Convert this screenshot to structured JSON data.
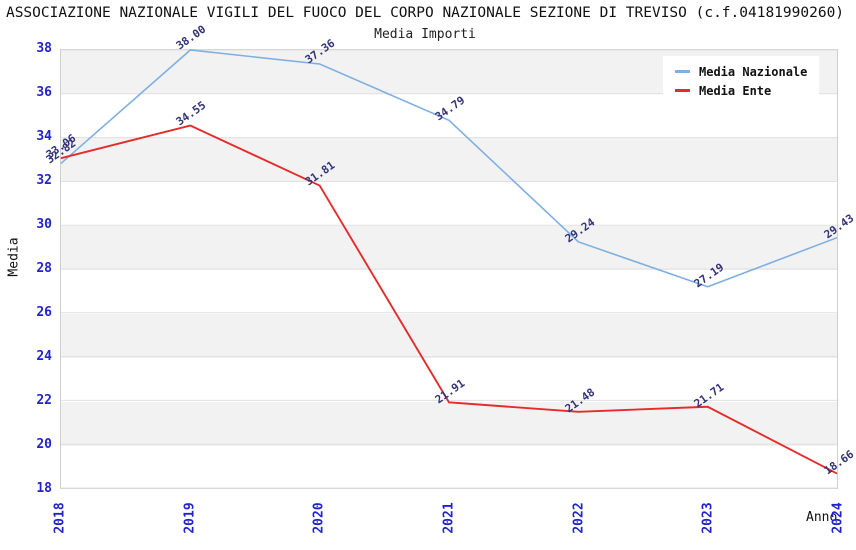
{
  "page": {
    "title": "ASSOCIAZIONE NAZIONALE VIGILI DEL FUOCO DEL CORPO NAZIONALE SEZIONE DI TREVISO (c.f.04181990260)"
  },
  "chart_data": {
    "type": "line",
    "title": "Media Importi",
    "xlabel": "Anno",
    "ylabel": "Media",
    "x": [
      "2018",
      "2019",
      "2020",
      "2021",
      "2022",
      "2023",
      "2024"
    ],
    "series": [
      {
        "name": "Media Nazionale",
        "color": "#7fb0e0",
        "values": [
          32.82,
          38.0,
          37.36,
          34.79,
          29.24,
          27.19,
          29.43
        ]
      },
      {
        "name": "Media Ente",
        "color": "#e62b2b",
        "values": [
          33.06,
          34.55,
          31.81,
          21.91,
          21.48,
          21.71,
          18.66
        ]
      }
    ],
    "ylim": [
      18,
      38
    ],
    "ytick_step": 2,
    "grid": "horizontal",
    "stripes": true,
    "legend_position": "top-right",
    "colors": {
      "tick_labels": "#2323cb",
      "data_labels": "#333377",
      "gridline": "#e0e0e0",
      "stripe": "#f2f2f2"
    }
  }
}
